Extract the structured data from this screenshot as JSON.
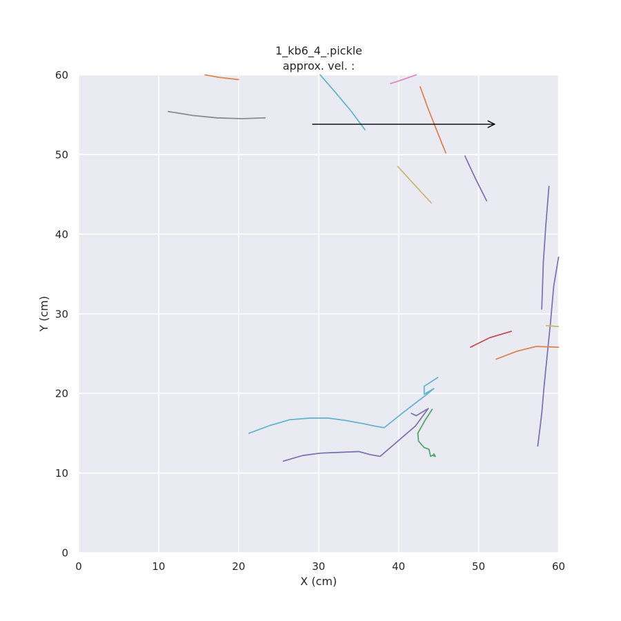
{
  "figure": {
    "title_line1": "1_kb6_4_.pickle",
    "title_line2": "approx. vel. :"
  },
  "chart_data": {
    "type": "line",
    "title": "1_kb6_4_.pickle\napprox. vel. :",
    "xlabel": "X (cm)",
    "ylabel": "Y (cm)",
    "xlim": [
      0,
      60
    ],
    "ylim": [
      0,
      60
    ],
    "xticks": [
      "0",
      "10",
      "20",
      "30",
      "40",
      "50",
      "60"
    ],
    "yticks": [
      "0",
      "10",
      "20",
      "30",
      "40",
      "50",
      "60"
    ],
    "grid": true,
    "background": "#eaeaf2",
    "gridColor": "#ffffff",
    "legend": "none",
    "arrow": {
      "from": [
        29.2,
        53.8
      ],
      "to": [
        52.0,
        53.8
      ],
      "color": "#000000"
    },
    "series": [
      {
        "color": "#dd8452",
        "points": [
          [
            15.8,
            60.0
          ],
          [
            17.5,
            59.7
          ],
          [
            20.0,
            59.4
          ]
        ]
      },
      {
        "color": "#8c8c8c",
        "points": [
          [
            11.2,
            55.4
          ],
          [
            14.3,
            54.9
          ],
          [
            17.3,
            54.6
          ],
          [
            20.4,
            54.5
          ],
          [
            23.3,
            54.6
          ]
        ]
      },
      {
        "color": "#da8bc3",
        "points": [
          [
            39.0,
            58.9
          ],
          [
            40.8,
            59.5
          ],
          [
            42.2,
            60.0
          ]
        ]
      },
      {
        "color": "#64b5cd",
        "points": [
          [
            30.2,
            60.0
          ],
          [
            32.1,
            57.8
          ],
          [
            34.1,
            55.4
          ],
          [
            35.8,
            53.1
          ]
        ]
      },
      {
        "color": "#dd8452",
        "points": [
          [
            42.7,
            58.5
          ],
          [
            43.6,
            56.0
          ],
          [
            44.7,
            53.2
          ],
          [
            45.9,
            50.2
          ]
        ]
      },
      {
        "color": "#8172b3",
        "points": [
          [
            48.3,
            49.8
          ],
          [
            49.6,
            47.0
          ],
          [
            51.0,
            44.2
          ]
        ]
      },
      {
        "color": "#ccb974",
        "points": [
          [
            39.9,
            48.5
          ],
          [
            41.8,
            46.4
          ],
          [
            44.1,
            43.9
          ]
        ]
      },
      {
        "color": "#8172b3",
        "points": [
          [
            58.8,
            46.0
          ],
          [
            58.4,
            41.0
          ],
          [
            58.1,
            36.5
          ],
          [
            57.9,
            30.6
          ]
        ]
      },
      {
        "color": "#8172b3",
        "points": [
          [
            60.0,
            37.1
          ],
          [
            59.4,
            33.5
          ],
          [
            59.0,
            29.0
          ],
          [
            58.6,
            25.0
          ],
          [
            58.2,
            21.0
          ],
          [
            57.9,
            17.5
          ],
          [
            57.6,
            15.0
          ],
          [
            57.4,
            13.4
          ]
        ]
      },
      {
        "color": "#ccb974",
        "points": [
          [
            58.5,
            28.5
          ],
          [
            60.0,
            28.4
          ]
        ]
      },
      {
        "color": "#c44e52",
        "points": [
          [
            49.0,
            25.8
          ],
          [
            51.4,
            27.0
          ],
          [
            54.1,
            27.8
          ]
        ]
      },
      {
        "color": "#dd8452",
        "points": [
          [
            52.2,
            24.3
          ],
          [
            54.8,
            25.3
          ],
          [
            57.2,
            25.9
          ],
          [
            60.0,
            25.8
          ]
        ]
      },
      {
        "color": "#64b5cd",
        "points": [
          [
            21.3,
            15.0
          ],
          [
            24.0,
            16.0
          ],
          [
            26.4,
            16.7
          ],
          [
            28.9,
            16.9
          ],
          [
            31.2,
            16.9
          ],
          [
            33.4,
            16.6
          ],
          [
            35.6,
            16.2
          ],
          [
            37.0,
            15.9
          ],
          [
            38.2,
            15.7
          ],
          [
            40.7,
            17.7
          ],
          [
            43.3,
            19.7
          ],
          [
            44.4,
            20.6
          ],
          [
            43.2,
            19.9
          ],
          [
            43.2,
            20.9
          ],
          [
            44.9,
            22.0
          ]
        ]
      },
      {
        "color": "#8172b3",
        "points": [
          [
            25.6,
            11.5
          ],
          [
            28.0,
            12.2
          ],
          [
            30.2,
            12.5
          ],
          [
            32.7,
            12.6
          ],
          [
            35.0,
            12.7
          ],
          [
            36.5,
            12.3
          ],
          [
            37.7,
            12.1
          ],
          [
            39.9,
            14.0
          ],
          [
            42.1,
            15.9
          ],
          [
            43.7,
            18.1
          ],
          [
            42.2,
            17.2
          ],
          [
            41.6,
            17.5
          ]
        ]
      },
      {
        "color": "#55a868",
        "points": [
          [
            44.2,
            18.0
          ],
          [
            43.3,
            16.6
          ],
          [
            42.4,
            15.0
          ],
          [
            42.5,
            14.0
          ],
          [
            43.2,
            13.2
          ],
          [
            43.8,
            13.0
          ],
          [
            44.0,
            12.1
          ],
          [
            44.4,
            12.3
          ],
          [
            44.3,
            12.2
          ],
          [
            44.6,
            12.1
          ],
          [
            44.4,
            12.4
          ]
        ]
      }
    ]
  }
}
